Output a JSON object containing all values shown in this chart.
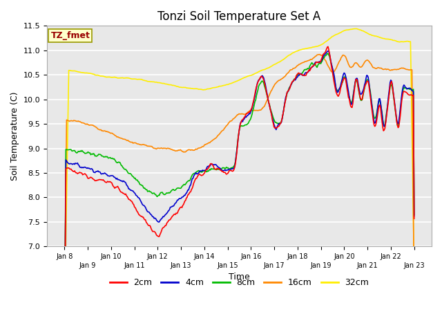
{
  "title": "Tonzi Soil Temperature Set A",
  "xlabel": "Time",
  "ylabel": "Soil Temperature (C)",
  "ylim": [
    7.0,
    11.5
  ],
  "yticks": [
    7.0,
    7.5,
    8.0,
    8.5,
    9.0,
    9.5,
    10.0,
    10.5,
    11.0,
    11.5
  ],
  "colors": {
    "2cm": "#ff0000",
    "4cm": "#0000cc",
    "8cm": "#00bb00",
    "16cm": "#ff8800",
    "32cm": "#ffee00"
  },
  "legend_label": "TZ_fmet",
  "legend_box_facecolor": "#ffffcc",
  "legend_box_edgecolor": "#999900",
  "fig_facecolor": "#ffffff",
  "plot_facecolor": "#e8e8e8",
  "grid_color": "#ffffff",
  "x_labels": [
    "Jan 8",
    "Jan 9",
    "Jan 10",
    "Jan 11",
    "Jan 12",
    "Jan 13",
    "Jan 14",
    "Jan 15",
    "Jan 16",
    "Jan 17",
    "Jan 18",
    "Jan 19",
    "Jan 20",
    "Jan 21",
    "Jan 22",
    "Jan 23"
  ],
  "n_points": 480,
  "figsize": [
    6.4,
    4.8
  ],
  "dpi": 100
}
